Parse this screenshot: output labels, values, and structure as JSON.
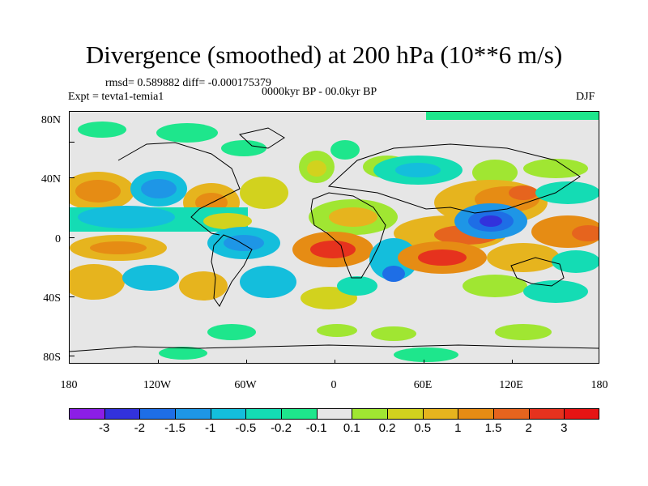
{
  "title": "Divergence (smoothed) at 200 hPa (10**6 m/s)",
  "stats": "rmsd= 0.589882 diff= -0.000175379",
  "experiment": "Expt = tevta1-temia1",
  "period": "0000kyr BP - 00.0kyr BP",
  "season": "DJF",
  "lat_labels": [
    "80N",
    "40N",
    "0",
    "40S",
    "80S"
  ],
  "lon_labels": [
    "180",
    "120W",
    "60W",
    "0",
    "60E",
    "120E",
    "180"
  ],
  "colorbar": {
    "colors": [
      "#8c1ee6",
      "#3232dc",
      "#1e6ee6",
      "#1e96e6",
      "#14bedc",
      "#14dcb4",
      "#1ee68c",
      "#e6e6e6",
      "#a0e632",
      "#d2d21e",
      "#e6b41e",
      "#e68c14",
      "#e6641e",
      "#e6321e",
      "#e61414"
    ],
    "labels": [
      "-3",
      "-2",
      "-1.5",
      "-1",
      "-0.5",
      "-0.2",
      "-0.1",
      "0.1",
      "0.2",
      "0.5",
      "1",
      "1.5",
      "2",
      "3"
    ]
  },
  "field_colors": {
    "neutral": "#e6e6e6",
    "pos_weak": "#a0e632",
    "pos_light": "#d2d21e",
    "pos_mid": "#e6b41e",
    "pos_strong": "#e68c14",
    "pos_high": "#e6641e",
    "pos_max": "#e6321e",
    "neg_weak": "#1ee68c",
    "neg_light": "#14dcb4",
    "neg_mid": "#14bedc",
    "neg_strong": "#1e96e6",
    "neg_high": "#1e6ee6",
    "neg_max": "#3232dc",
    "coast": "#000000"
  }
}
